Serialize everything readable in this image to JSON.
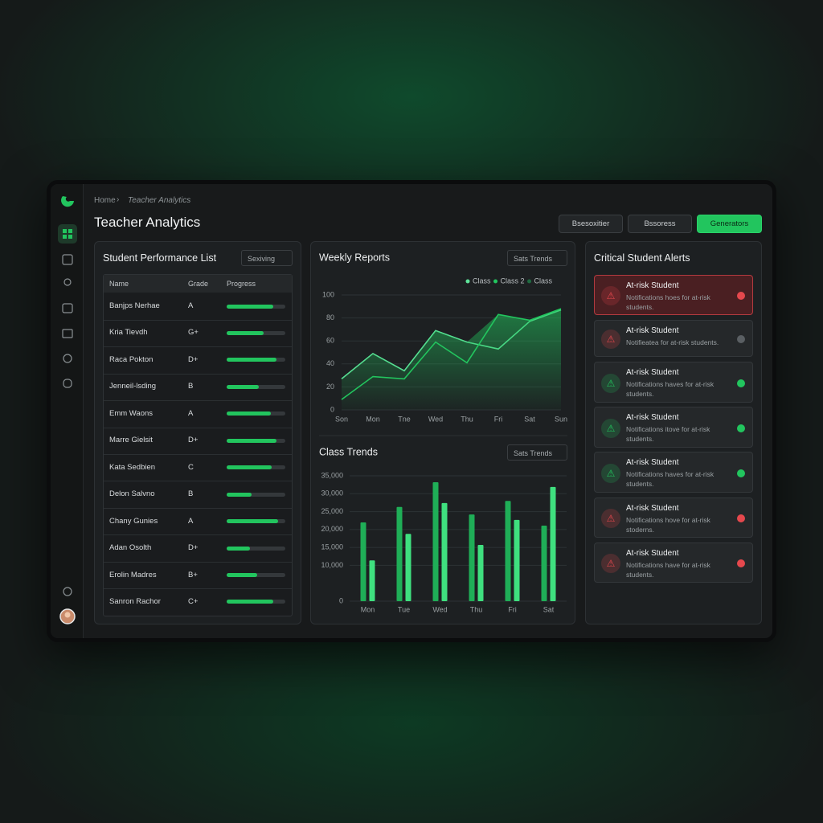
{
  "breadcrumb": [
    "Home",
    "Teacher Analytics"
  ],
  "title": "Teacher Analytics",
  "buttons": [
    "Bsesoxitier",
    "Bssoress",
    "Generators"
  ],
  "performance": {
    "title": "Student Performance List",
    "filter": "Sexiving",
    "columns": [
      "Name",
      "Grade",
      "Progress"
    ],
    "rows": [
      {
        "name": "Banjps Nerhae",
        "grade": "A",
        "progress": 80
      },
      {
        "name": "Kria Tievdh",
        "grade": "G+",
        "progress": 63
      },
      {
        "name": "Raca Pokton",
        "grade": "D+",
        "progress": 85
      },
      {
        "name": "Jenneil-lsding",
        "grade": "B",
        "progress": 55
      },
      {
        "name": "Emm Waons",
        "grade": "A",
        "progress": 75
      },
      {
        "name": "Marre Gielsit",
        "grade": "D+",
        "progress": 85
      },
      {
        "name": "Kata Sedbien",
        "grade": "C",
        "progress": 77
      },
      {
        "name": "Delon Salvno",
        "grade": "B",
        "progress": 43
      },
      {
        "name": "Chany Gunies",
        "grade": "A",
        "progress": 88
      },
      {
        "name": "Adan Osolth",
        "grade": "D+",
        "progress": 40
      },
      {
        "name": "Erolin Madres",
        "grade": "B+",
        "progress": 52
      },
      {
        "name": "Sanron Rachor",
        "grade": "C+",
        "progress": 80
      }
    ]
  },
  "chart_data": [
    {
      "type": "line",
      "title": "Weekly Reports",
      "filter": "Sats Trends",
      "categories": [
        "Son",
        "Mon",
        "Tne",
        "Wed",
        "Thu",
        "Fri",
        "Sat",
        "Sun"
      ],
      "series": [
        {
          "name": "Class",
          "color": "#5ee39a",
          "values": [
            27,
            49,
            34,
            69,
            59,
            53,
            77,
            87
          ]
        },
        {
          "name": "Class 2",
          "color": "#22c55e",
          "values": [
            9,
            29,
            27,
            59,
            41,
            83,
            78,
            88
          ]
        },
        {
          "name": "Class",
          "color": "#1f6b41",
          "fill": true,
          "values": [
            27,
            49,
            34,
            69,
            59,
            83,
            78,
            88
          ]
        }
      ],
      "ylim": [
        0,
        100
      ],
      "yticks": [
        0,
        20,
        40,
        60,
        80,
        100
      ],
      "grid": true
    },
    {
      "type": "bar",
      "title": "Class Trends",
      "filter": "Sats Trends",
      "categories": [
        "Mon",
        "Tue",
        "Wed",
        "Thu",
        "Fri",
        "Sat"
      ],
      "series": [
        {
          "color": "#1fae57",
          "values": [
            22000,
            26300,
            33200,
            24200,
            28000,
            21100
          ]
        },
        {
          "color": "#3fe07f",
          "values": [
            11400,
            18800,
            27400,
            15700,
            22700,
            31900
          ]
        }
      ],
      "ylim": [
        0,
        35000
      ],
      "yticks": [
        0,
        {
          "value": 10000,
          "label": "10,000"
        },
        {
          "value": 15000,
          "label": "15,000"
        },
        {
          "value": 20000,
          "label": "20,000"
        },
        {
          "value": 25000,
          "label": "25,000"
        },
        {
          "value": 30000,
          "label": "30,000"
        },
        {
          "value": 35000,
          "label": "35,000"
        }
      ],
      "grid": true
    }
  ],
  "alerts": {
    "title": "Critical Student Alerts",
    "items": [
      {
        "title": "At-risk Student",
        "text": "Notifications hoes for at-risk students.",
        "color": "#e5484d",
        "dot": "#e5484d",
        "highlight": true
      },
      {
        "title": "At-risk Student",
        "text": "Notifieatea for at-risk students.",
        "color": "#e5484d",
        "dot": "#5a5f63"
      },
      {
        "title": "At-risk Student",
        "text": "Notifications haves for at-risk students.",
        "color": "#22c55e",
        "dot": "#22c55e"
      },
      {
        "title": "At-risk Student",
        "text": "Notifications itove for at-risk students.",
        "color": "#22c55e",
        "dot": "#22c55e"
      },
      {
        "title": "At-risk Student",
        "text": "Notifications haves for at-risk students.",
        "color": "#22c55e",
        "dot": "#22c55e"
      },
      {
        "title": "At-risk Student",
        "text": "Notifications hove for at-risk stoderns.",
        "color": "#e5484d",
        "dot": "#e5484d"
      },
      {
        "title": "At-risk Student",
        "text": "Notifications have for at-risk students.",
        "color": "#e5484d",
        "dot": "#e5484d"
      }
    ]
  }
}
